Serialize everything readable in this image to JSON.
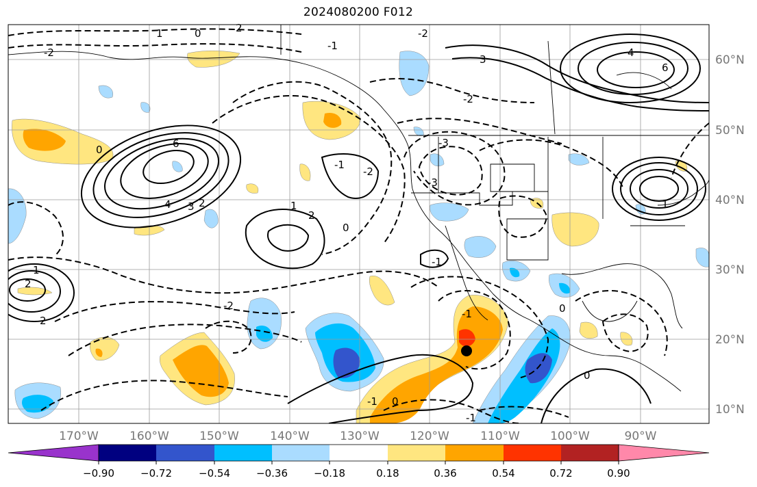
{
  "title": "2024080200 F012",
  "lon_labels": [
    "170°W",
    "160°W",
    "150°W",
    "140°W",
    "130°W",
    "120°W",
    "110°W",
    "100°W",
    "90°W"
  ],
  "lat_labels": [
    "60°N",
    "50°N",
    "40°N",
    "30°N",
    "20°N",
    "10°N"
  ],
  "colorbar": {
    "tick_labels": [
      "−0.90",
      "−0.72",
      "−0.54",
      "−0.36",
      "−0.18",
      "0.18",
      "0.36",
      "0.54",
      "0.72",
      "0.90"
    ],
    "colors": [
      "#9933cc",
      "#000080",
      "#3355cc",
      "#00bfff",
      "#aadcff",
      "#ffffff",
      "#ffe680",
      "#ffa500",
      "#ff3300",
      "#b22222",
      "#ff88aa"
    ]
  },
  "contour_labels": [
    {
      "text": "0"
    },
    {
      "text": "2"
    },
    {
      "text": "-2"
    },
    {
      "text": "1"
    },
    {
      "text": "-1"
    },
    {
      "text": "6"
    },
    {
      "text": "4"
    },
    {
      "text": "3"
    },
    {
      "text": "2"
    },
    {
      "text": "0"
    },
    {
      "text": "-1"
    },
    {
      "text": "1"
    },
    {
      "text": "2"
    },
    {
      "text": "-2"
    },
    {
      "text": "0"
    },
    {
      "text": "-2"
    },
    {
      "text": "-1"
    },
    {
      "text": "0"
    },
    {
      "text": "-1"
    },
    {
      "text": "1"
    },
    {
      "text": "4"
    },
    {
      "text": "6"
    },
    {
      "text": "3"
    },
    {
      "text": "-2"
    },
    {
      "text": "-3"
    },
    {
      "text": "-3"
    },
    {
      "text": "0"
    },
    {
      "text": "2"
    },
    {
      "text": "-1"
    },
    {
      "text": "2"
    },
    {
      "text": "-1"
    },
    {
      "text": "0"
    },
    {
      "text": "-2"
    },
    {
      "text": "1"
    }
  ]
}
